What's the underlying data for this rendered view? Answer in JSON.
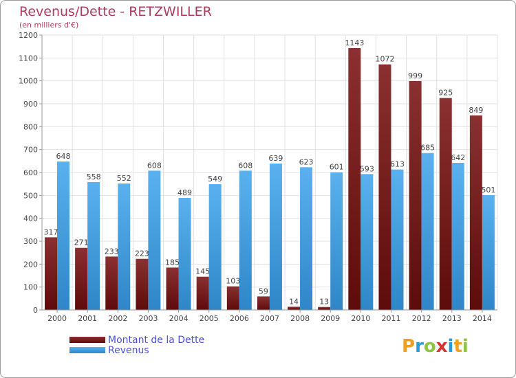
{
  "title": "Revenus/Dette - RETZWILLER",
  "subtitle": "(en milliers d'€)",
  "colors": {
    "dette_dark": "#5e0b0b",
    "dette_light": "#8a3030",
    "revenus_dark": "#2f86c8",
    "revenus_light": "#5ab1ee",
    "grid": "#e2e2e2",
    "text": "#444444",
    "title": "#b03a5b",
    "legend_text": "#4a4fe0"
  },
  "legend": {
    "dette_label": "Montant de la Dette",
    "revenus_label": "Revenus"
  },
  "logo": {
    "text": "Proxiti",
    "letters": [
      "P",
      "r",
      "o",
      "x",
      "i",
      "t",
      "i"
    ],
    "letter_colors": [
      "#f0a020",
      "#2a9ad6",
      "#8bc43f",
      "#d6322e",
      "#2a9ad6",
      "#f0a020",
      "#8bc43f"
    ]
  },
  "chart_data": {
    "type": "bar",
    "title": "Revenus/Dette - RETZWILLER",
    "subtitle": "(en milliers d'€)",
    "categories": [
      "2000",
      "2001",
      "2002",
      "2003",
      "2004",
      "2005",
      "2006",
      "2007",
      "2008",
      "2009",
      "2010",
      "2011",
      "2012",
      "2013",
      "2014"
    ],
    "series": [
      {
        "name": "Montant de la Dette",
        "values": [
          317,
          271,
          233,
          223,
          185,
          145,
          103,
          59,
          14,
          13,
          1143,
          1072,
          999,
          925,
          849
        ]
      },
      {
        "name": "Revenus",
        "values": [
          648,
          558,
          552,
          608,
          489,
          549,
          608,
          639,
          623,
          601,
          593,
          613,
          685,
          642,
          501
        ]
      }
    ],
    "ylim": [
      0,
      1200
    ],
    "yticks": [
      0,
      100,
      200,
      300,
      400,
      500,
      600,
      700,
      800,
      900,
      1000,
      1100,
      1200
    ],
    "grid": true,
    "legend_position": "bottom-left"
  }
}
